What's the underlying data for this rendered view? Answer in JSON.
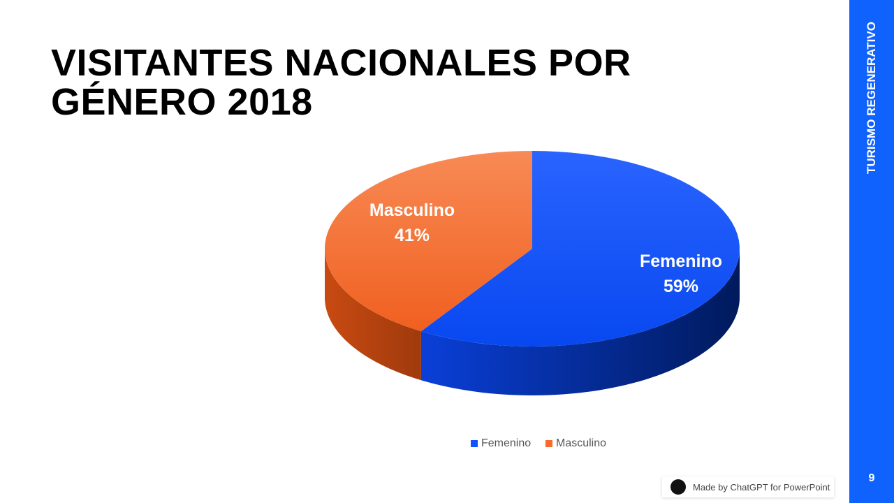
{
  "title": "VISITANTES NACIONALES POR GÉNERO 2018",
  "sidebar_label": "TURISMO REGENERATIVO",
  "page_number": "9",
  "badge": {
    "text": "Made by ChatGPT for PowerPoint",
    "logo_text": "GPT"
  },
  "chart_data": {
    "type": "pie",
    "style": "3d",
    "categories": [
      "Femenino",
      "Masculino"
    ],
    "values": [
      59,
      41
    ],
    "labels": [
      "59%",
      "41%"
    ],
    "colors": [
      "#0f52fe",
      "#fb6a2c"
    ],
    "legend": "bottom"
  }
}
